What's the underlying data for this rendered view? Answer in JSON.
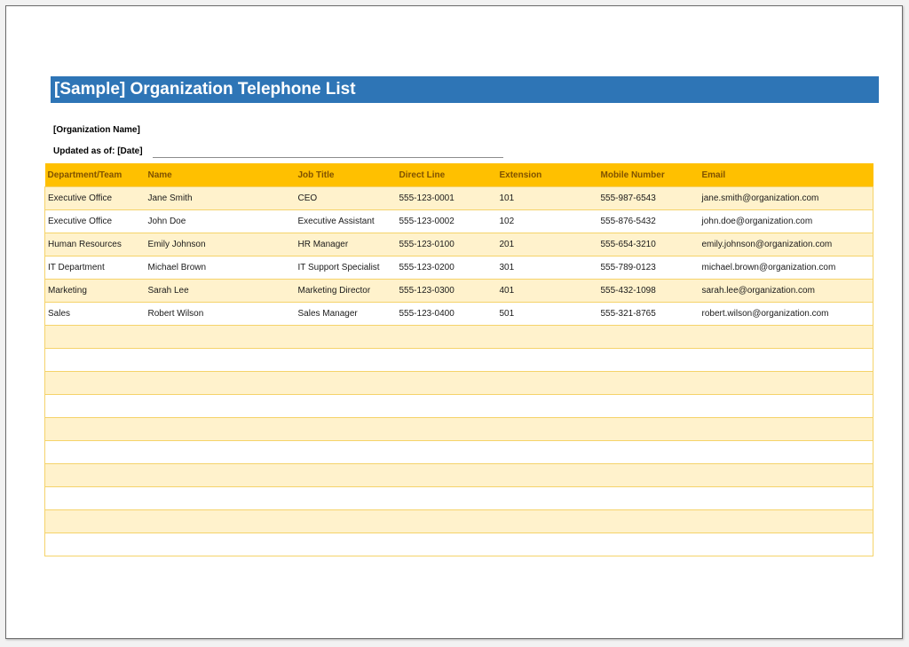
{
  "title": "[Sample] Organization Telephone List",
  "organization_label": "[Organization Name]",
  "updated_label": "Updated as of: [Date]",
  "table": {
    "headers": [
      "Department/Team",
      "Name",
      "Job Title",
      "Direct Line",
      "Extension",
      "Mobile Number",
      "Email"
    ],
    "rows": [
      [
        "Executive Office",
        "Jane Smith",
        "CEO",
        "555-123-0001",
        "101",
        "555-987-6543",
        "jane.smith@organization.com"
      ],
      [
        "Executive Office",
        "John Doe",
        "Executive Assistant",
        "555-123-0002",
        "102",
        "555-876-5432",
        "john.doe@organization.com"
      ],
      [
        "Human Resources",
        "Emily Johnson",
        "HR Manager",
        "555-123-0100",
        "201",
        "555-654-3210",
        "emily.johnson@organization.com"
      ],
      [
        "IT Department",
        "Michael Brown",
        "IT Support Specialist",
        "555-123-0200",
        "301",
        "555-789-0123",
        "michael.brown@organization.com"
      ],
      [
        "Marketing",
        "Sarah Lee",
        "Marketing Director",
        "555-123-0300",
        "401",
        "555-432-1098",
        "sarah.lee@organization.com"
      ],
      [
        "Sales",
        "Robert Wilson",
        "Sales Manager",
        "555-123-0400",
        "501",
        "555-321-8765",
        "robert.wilson@organization.com"
      ],
      [
        "",
        "",
        "",
        "",
        "",
        "",
        ""
      ],
      [
        "",
        "",
        "",
        "",
        "",
        "",
        ""
      ],
      [
        "",
        "",
        "",
        "",
        "",
        "",
        ""
      ],
      [
        "",
        "",
        "",
        "",
        "",
        "",
        ""
      ],
      [
        "",
        "",
        "",
        "",
        "",
        "",
        ""
      ],
      [
        "",
        "",
        "",
        "",
        "",
        "",
        ""
      ],
      [
        "",
        "",
        "",
        "",
        "",
        "",
        ""
      ],
      [
        "",
        "",
        "",
        "",
        "",
        "",
        ""
      ],
      [
        "",
        "",
        "",
        "",
        "",
        "",
        ""
      ],
      [
        "",
        "",
        "",
        "",
        "",
        "",
        ""
      ]
    ]
  },
  "colors": {
    "title_bar": "#2e75b6",
    "header_fill": "#ffc000",
    "header_text": "#7f5200",
    "band_fill": "#fff2cc"
  }
}
